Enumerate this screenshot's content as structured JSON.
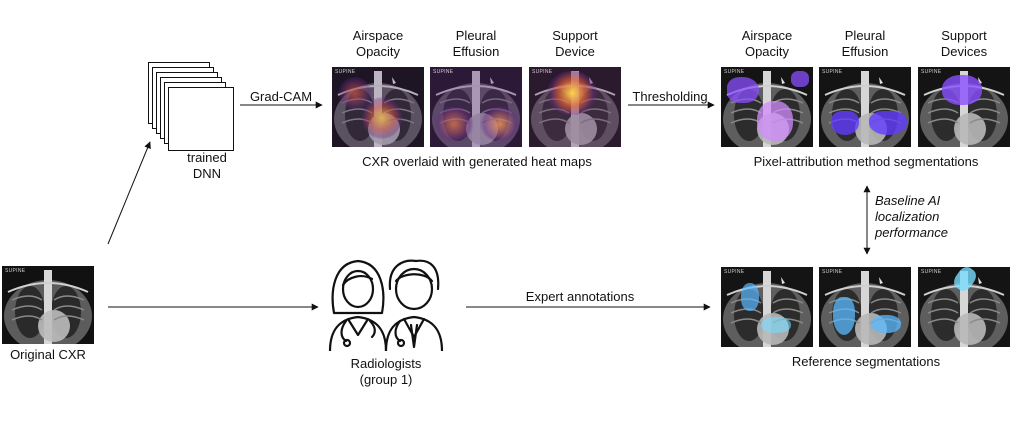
{
  "model": {
    "label_line1": "trained",
    "label_line2": "DNN"
  },
  "original": {
    "label": "Original CXR"
  },
  "radiologists": {
    "label_line1": "Radiologists",
    "label_line2": "(group 1)"
  },
  "image_tag": "SUPINE",
  "heatmaps": {
    "caption": "CXR overlaid with generated heat maps",
    "titles": [
      {
        "line1": "Airspace",
        "line2": "Opacity"
      },
      {
        "line1": "Pleural",
        "line2": "Effusion"
      },
      {
        "line1": "Support",
        "line2": "Device"
      }
    ]
  },
  "pixel_attr": {
    "caption": "Pixel-attribution method segmentations",
    "titles": [
      {
        "line1": "Airspace",
        "line2": "Opacity"
      },
      {
        "line1": "Pleural",
        "line2": "Effusion"
      },
      {
        "line1": "Support",
        "line2": "Devices"
      }
    ]
  },
  "reference": {
    "caption": "Reference segmentations"
  },
  "arrows": {
    "gradcam": "Grad-CAM",
    "thresholding": "Thresholding",
    "expert": "Expert annotations",
    "baseline_line1": "Baseline AI",
    "baseline_line2": "localization",
    "baseline_line3": "performance"
  },
  "colors": {
    "heat_hot": "#ffd54a",
    "heat_warm": "#e0603a",
    "heat_cool": "#6a2a8a",
    "pixel_seg": "#8a4dff",
    "reference_seg": "#5ab8ff"
  }
}
